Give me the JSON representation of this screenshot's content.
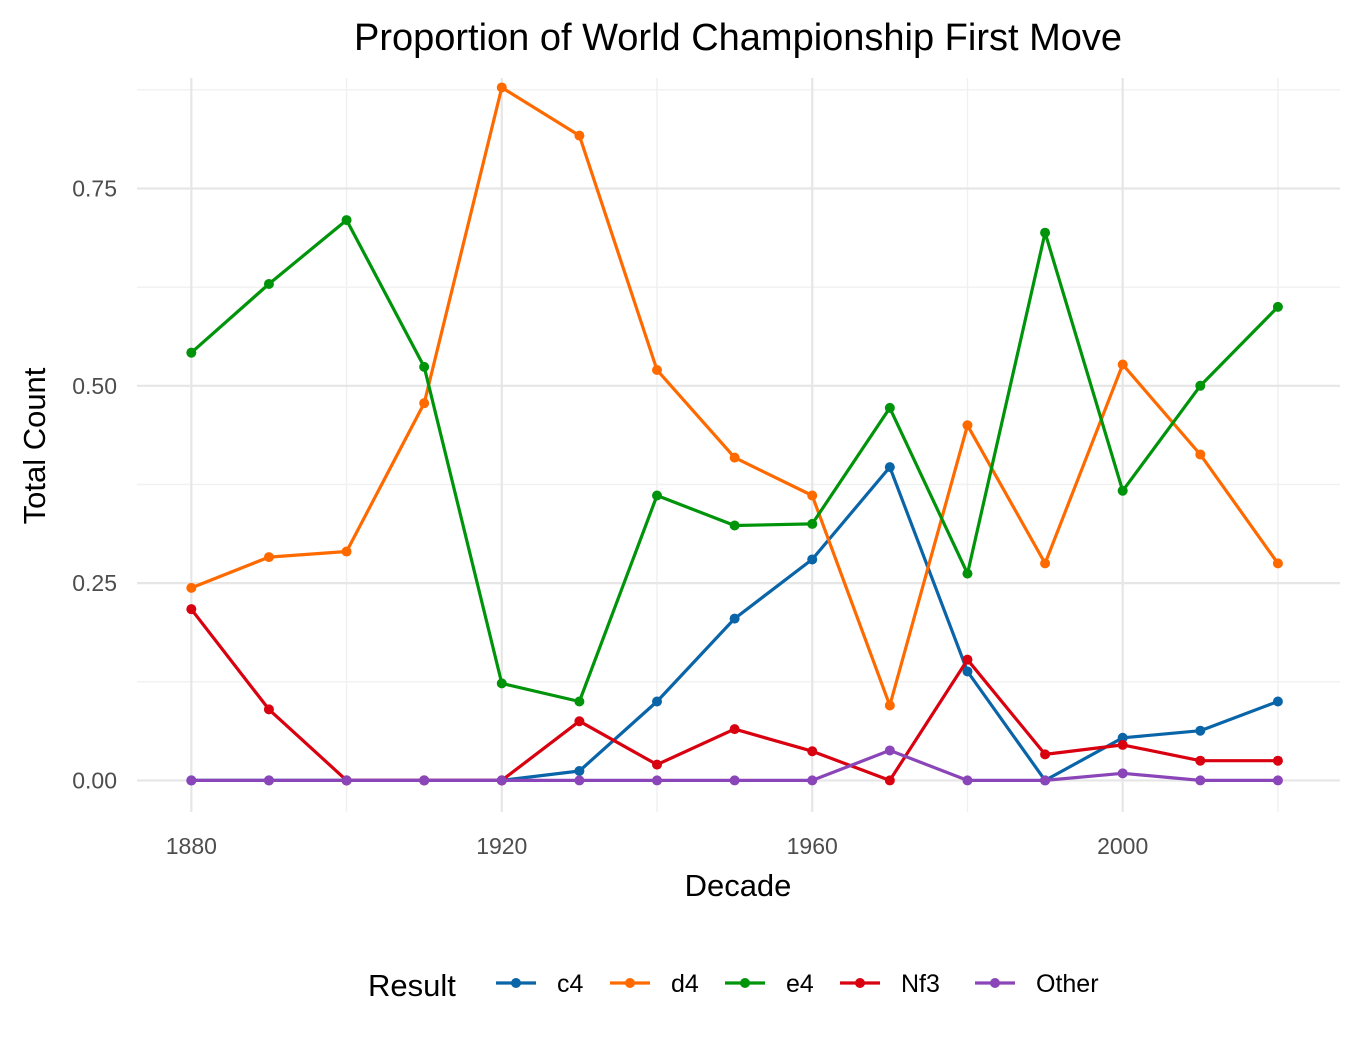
{
  "chart_data": {
    "type": "line",
    "title": "Proportion of World Championship First Move",
    "xlabel": "Decade",
    "ylabel": "Total Count",
    "x": [
      1880,
      1890,
      1900,
      1910,
      1920,
      1930,
      1940,
      1950,
      1960,
      1970,
      1980,
      1990,
      2000,
      2010,
      2020
    ],
    "xlim": [
      1873,
      2028
    ],
    "ylim": [
      -0.04,
      0.89
    ],
    "x_ticks": [
      1880,
      1920,
      1960,
      2000
    ],
    "x_tick_labels": [
      "1880",
      "1920",
      "1960",
      "2000"
    ],
    "y_ticks": [
      0,
      0.25,
      0.5,
      0.75
    ],
    "y_tick_labels": [
      "0.00",
      "0.25",
      "0.50",
      "0.75"
    ],
    "grid": true,
    "legend": {
      "title": "Result",
      "position": "bottom"
    },
    "series": [
      {
        "name": "c4",
        "color": "#0a64a8",
        "values": [
          0,
          0,
          0,
          0,
          0,
          0.012,
          0.1,
          0.205,
          0.28,
          0.397,
          0.138,
          0,
          0.054,
          0.063,
          0.1
        ]
      },
      {
        "name": "d4",
        "color": "#ff6a00",
        "values": [
          0.244,
          0.283,
          0.29,
          0.478,
          0.878,
          0.817,
          0.52,
          0.409,
          0.361,
          0.095,
          0.45,
          0.275,
          0.527,
          0.413,
          0.275
        ]
      },
      {
        "name": "e4",
        "color": "#00940b",
        "values": [
          0.542,
          0.629,
          0.71,
          0.524,
          0.123,
          0.1,
          0.361,
          0.323,
          0.325,
          0.472,
          0.262,
          0.694,
          0.367,
          0.5,
          0.6
        ]
      },
      {
        "name": "Nf3",
        "color": "#d9000f",
        "values": [
          0.217,
          0.09,
          0,
          0,
          0,
          0.075,
          0.02,
          0.065,
          0.037,
          0,
          0.153,
          0.033,
          0.045,
          0.025,
          0.025
        ]
      },
      {
        "name": "Other",
        "color": "#8a46b8",
        "values": [
          0,
          0,
          0,
          0,
          0,
          0,
          0,
          0,
          0,
          0.038,
          0,
          0,
          0.009,
          0,
          0
        ]
      }
    ]
  }
}
